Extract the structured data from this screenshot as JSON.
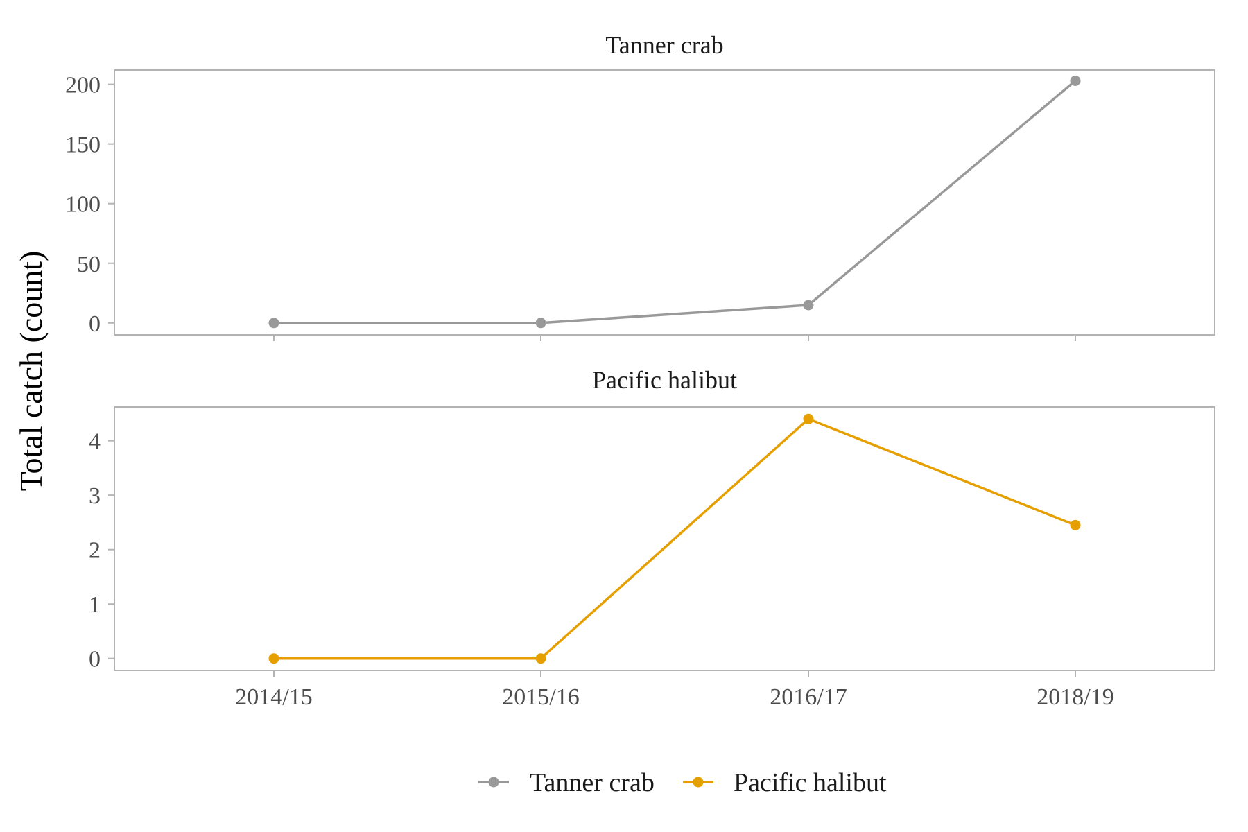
{
  "chart_data": {
    "type": "line",
    "ylabel": "Total catch (count)",
    "categories": [
      "2014/15",
      "2015/16",
      "2016/17",
      "2018/19"
    ],
    "colors": {
      "Tanner crab": "#999999",
      "Pacific halibut": "#E69F00",
      "axis": "#b3b3b3"
    },
    "panels": [
      {
        "title": "Tanner crab",
        "series_name": "Tanner crab",
        "values": [
          0,
          0,
          15,
          203
        ],
        "ylim": [
          -10,
          212
        ],
        "yticks": [
          0,
          50,
          100,
          150,
          200
        ],
        "grid": false
      },
      {
        "title": "Pacific halibut",
        "series_name": "Pacific halibut",
        "values": [
          0,
          0,
          4.4,
          2.45
        ],
        "ylim": [
          -0.22,
          4.62
        ],
        "yticks": [
          0,
          1,
          2,
          3,
          4
        ],
        "grid": false
      }
    ],
    "legend": {
      "position": "bottom",
      "entries": [
        "Tanner crab",
        "Pacific halibut"
      ]
    }
  }
}
